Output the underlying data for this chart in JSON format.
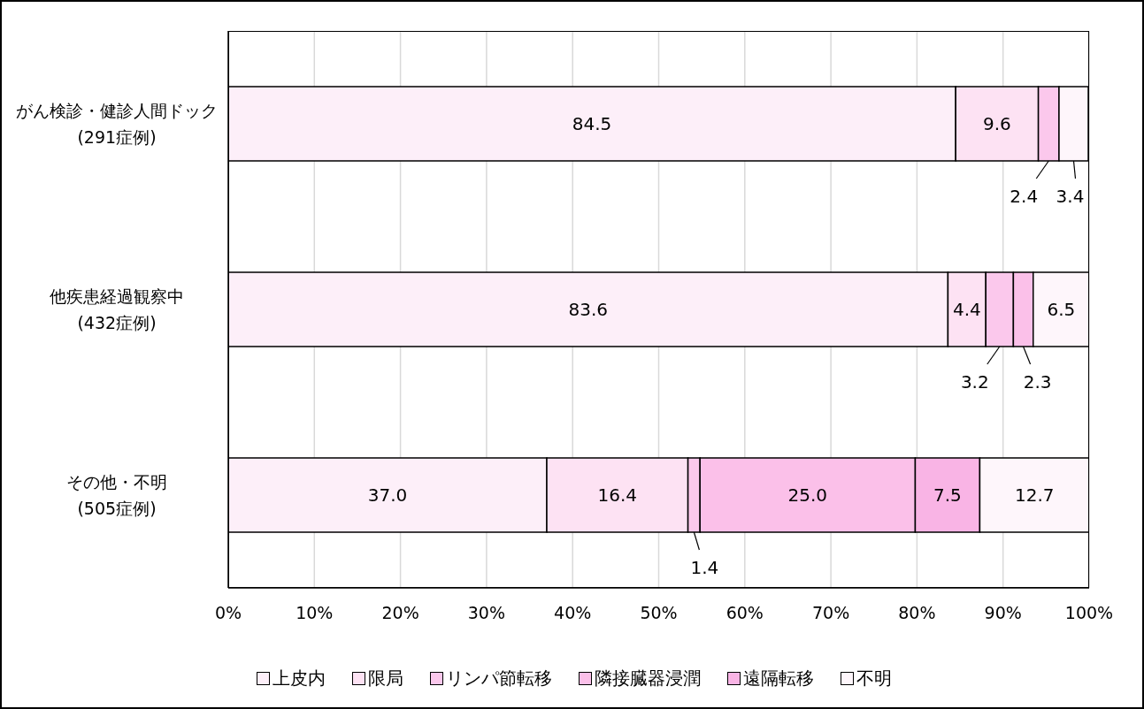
{
  "chart_data": {
    "type": "bar",
    "orientation": "horizontal",
    "stacked": true,
    "categories": [
      "がん検診・健診人間ドック\n(291症例)",
      "他疾患経過観察中\n(432症例)",
      "その他・不明\n(505症例)"
    ],
    "series": [
      {
        "name": "上皮内",
        "color": "#fdeff9",
        "values": [
          84.5,
          83.6,
          37.0
        ],
        "value_labels": [
          "84.5",
          "83.6",
          "37.0"
        ]
      },
      {
        "name": "限局",
        "color": "#fde2f3",
        "values": [
          9.6,
          4.4,
          16.4
        ],
        "value_labels": [
          "9.6",
          "4.4",
          "16.4"
        ]
      },
      {
        "name": "リンパ節転移",
        "color": "#fbc8ec",
        "values": [
          2.4,
          3.2,
          1.4
        ],
        "value_labels": [
          "2.4",
          "3.2",
          "1.4"
        ]
      },
      {
        "name": "隣接臓器浸潤",
        "color": "#fbc0e9",
        "values": [
          0,
          2.3,
          25.0
        ],
        "value_labels": [
          null,
          "2.3",
          "25.0"
        ]
      },
      {
        "name": "遠隔転移",
        "color": "#f9b4e5",
        "values": [
          0,
          0,
          7.5
        ],
        "value_labels": [
          null,
          null,
          "7.5"
        ]
      },
      {
        "name": "不明",
        "color": "#fef6fb",
        "values": [
          3.4,
          6.5,
          12.7
        ],
        "value_labels": [
          "3.4",
          "6.5",
          "12.7"
        ]
      }
    ],
    "xlim": [
      0,
      100
    ],
    "xticks": [
      {
        "value": 0,
        "label": "0%"
      },
      {
        "value": 10,
        "label": "10%"
      },
      {
        "value": 20,
        "label": "20%"
      },
      {
        "value": 30,
        "label": "30%"
      },
      {
        "value": 40,
        "label": "40%"
      },
      {
        "value": 50,
        "label": "50%"
      },
      {
        "value": 60,
        "label": "60%"
      },
      {
        "value": 70,
        "label": "70%"
      },
      {
        "value": 80,
        "label": "80%"
      },
      {
        "value": 90,
        "label": "90%"
      },
      {
        "value": 100,
        "label": "100%"
      }
    ],
    "grid": "x",
    "legend": "bottom"
  }
}
